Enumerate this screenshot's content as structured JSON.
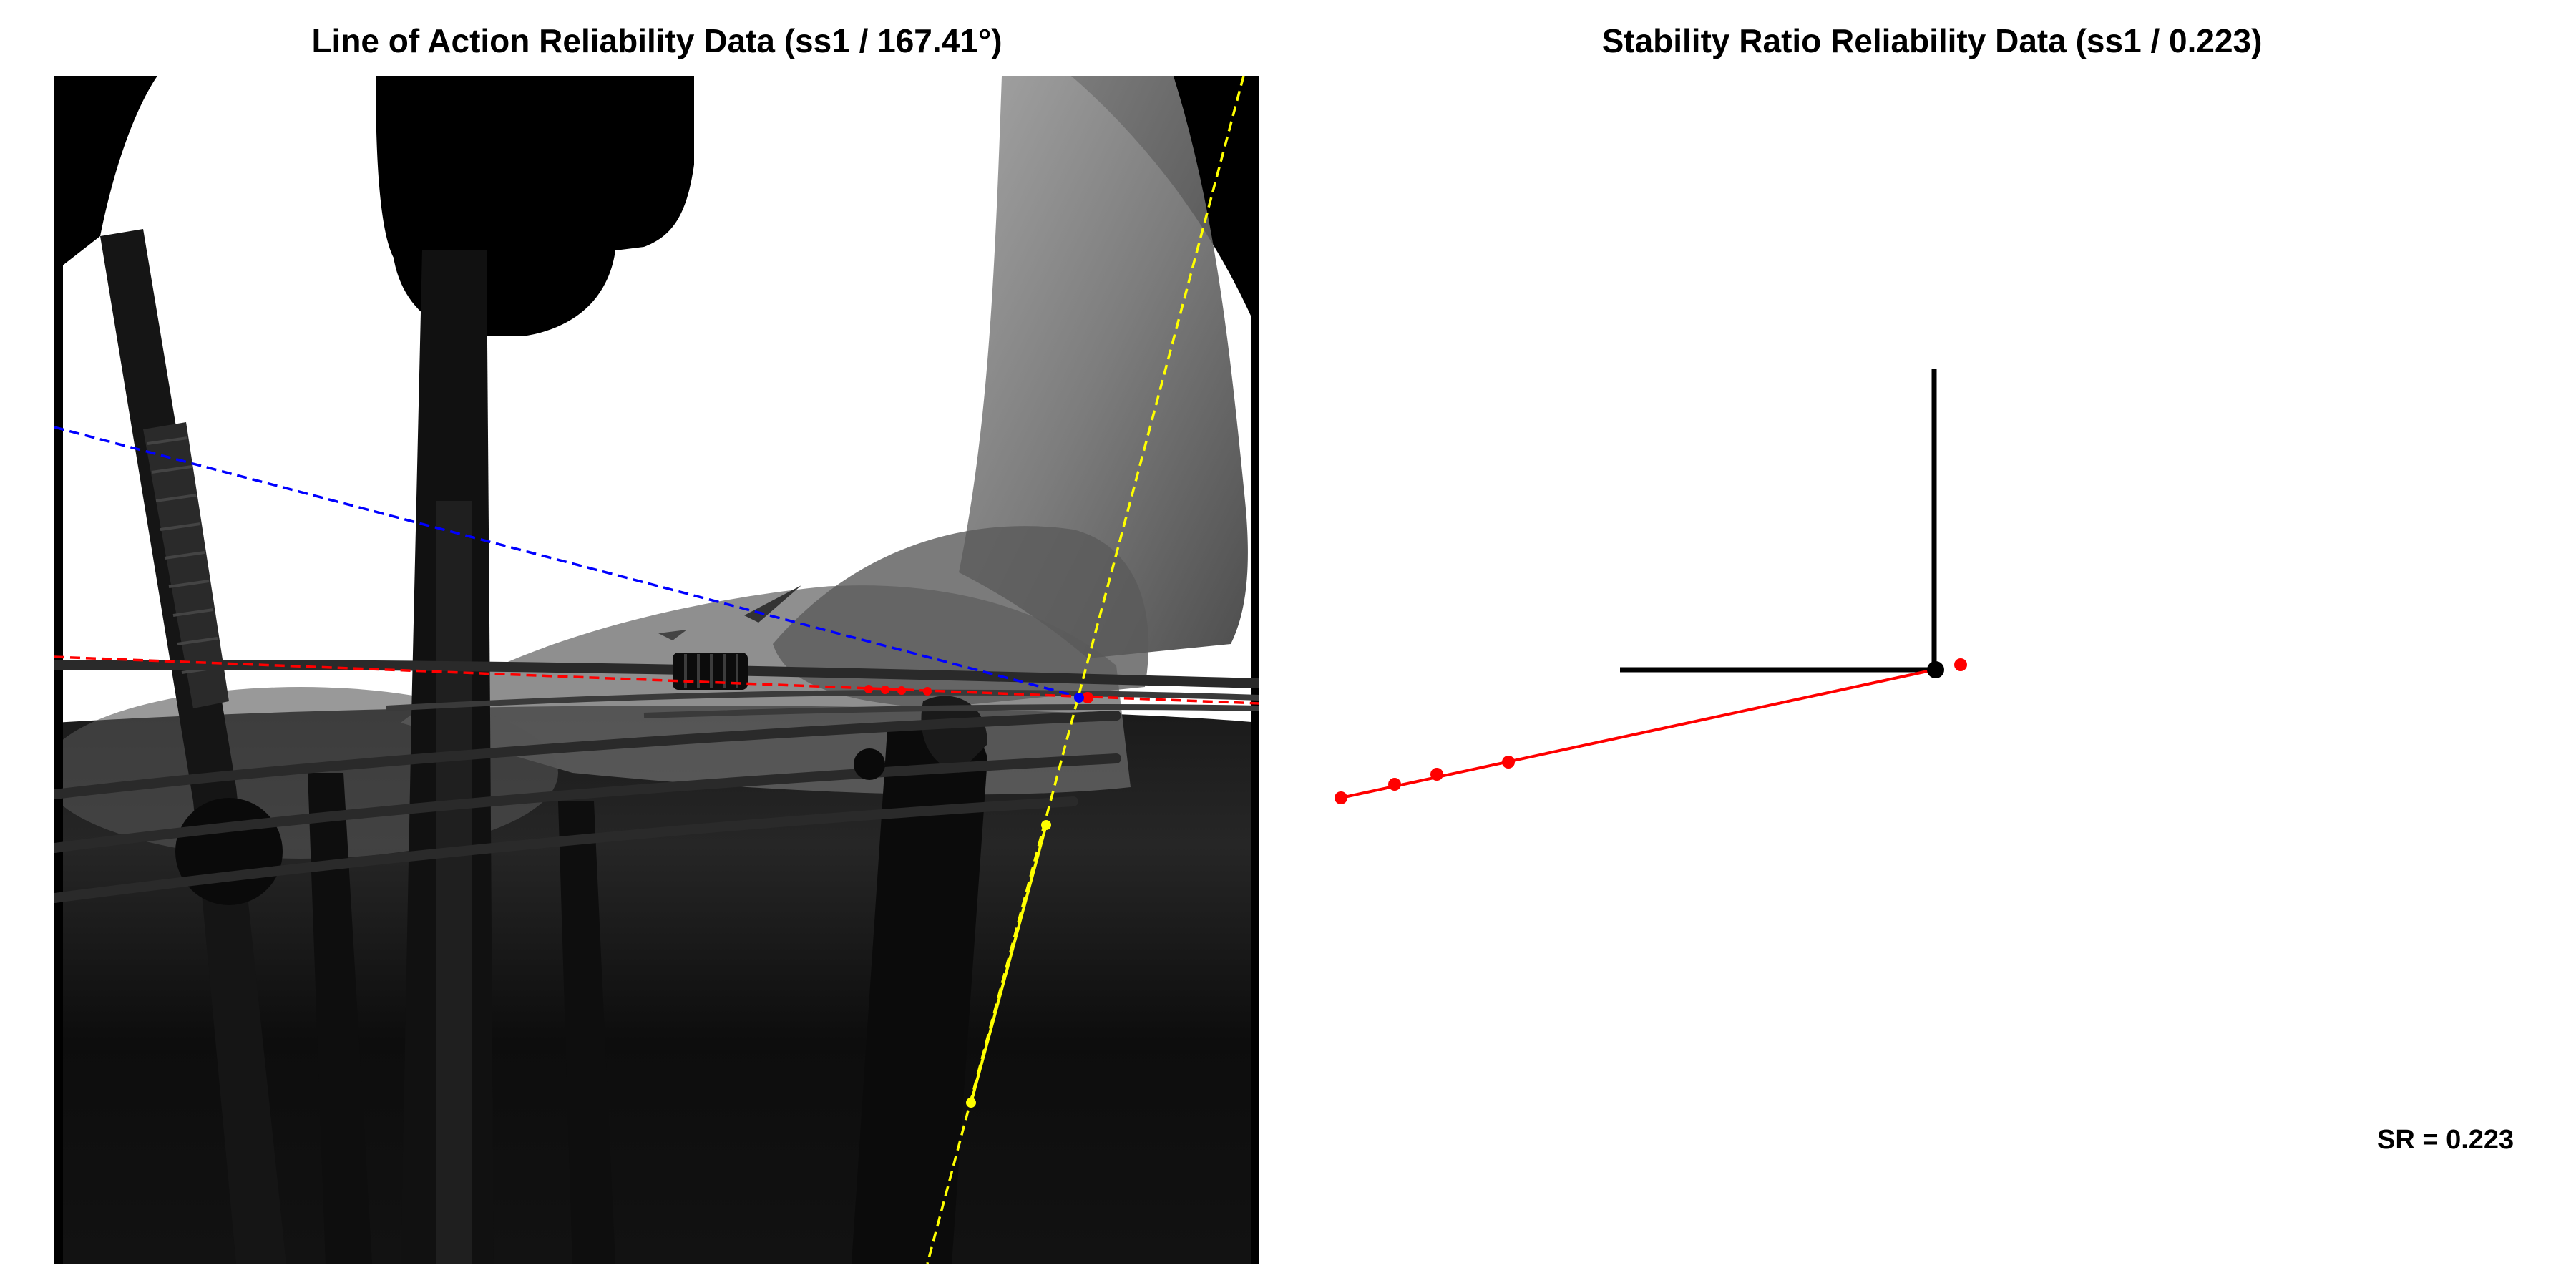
{
  "left_panel": {
    "title": "Line of Action Reliability Data (ss1 / 167.41°)",
    "image_content": "fluoroscopic x-ray of ankle/foot with fixation screws and wires",
    "colors": {
      "blue_line": "#0000ff",
      "red_line": "#ff0000",
      "yellow_line": "#ffff00"
    }
  },
  "right_panel": {
    "title": "Stability Ratio Reliability Data (ss1 / 0.223)",
    "sr_label": "SR = 0.223",
    "colors": {
      "axes": "#000000",
      "origin_point": "#000000",
      "points": "#ff0000"
    }
  }
}
